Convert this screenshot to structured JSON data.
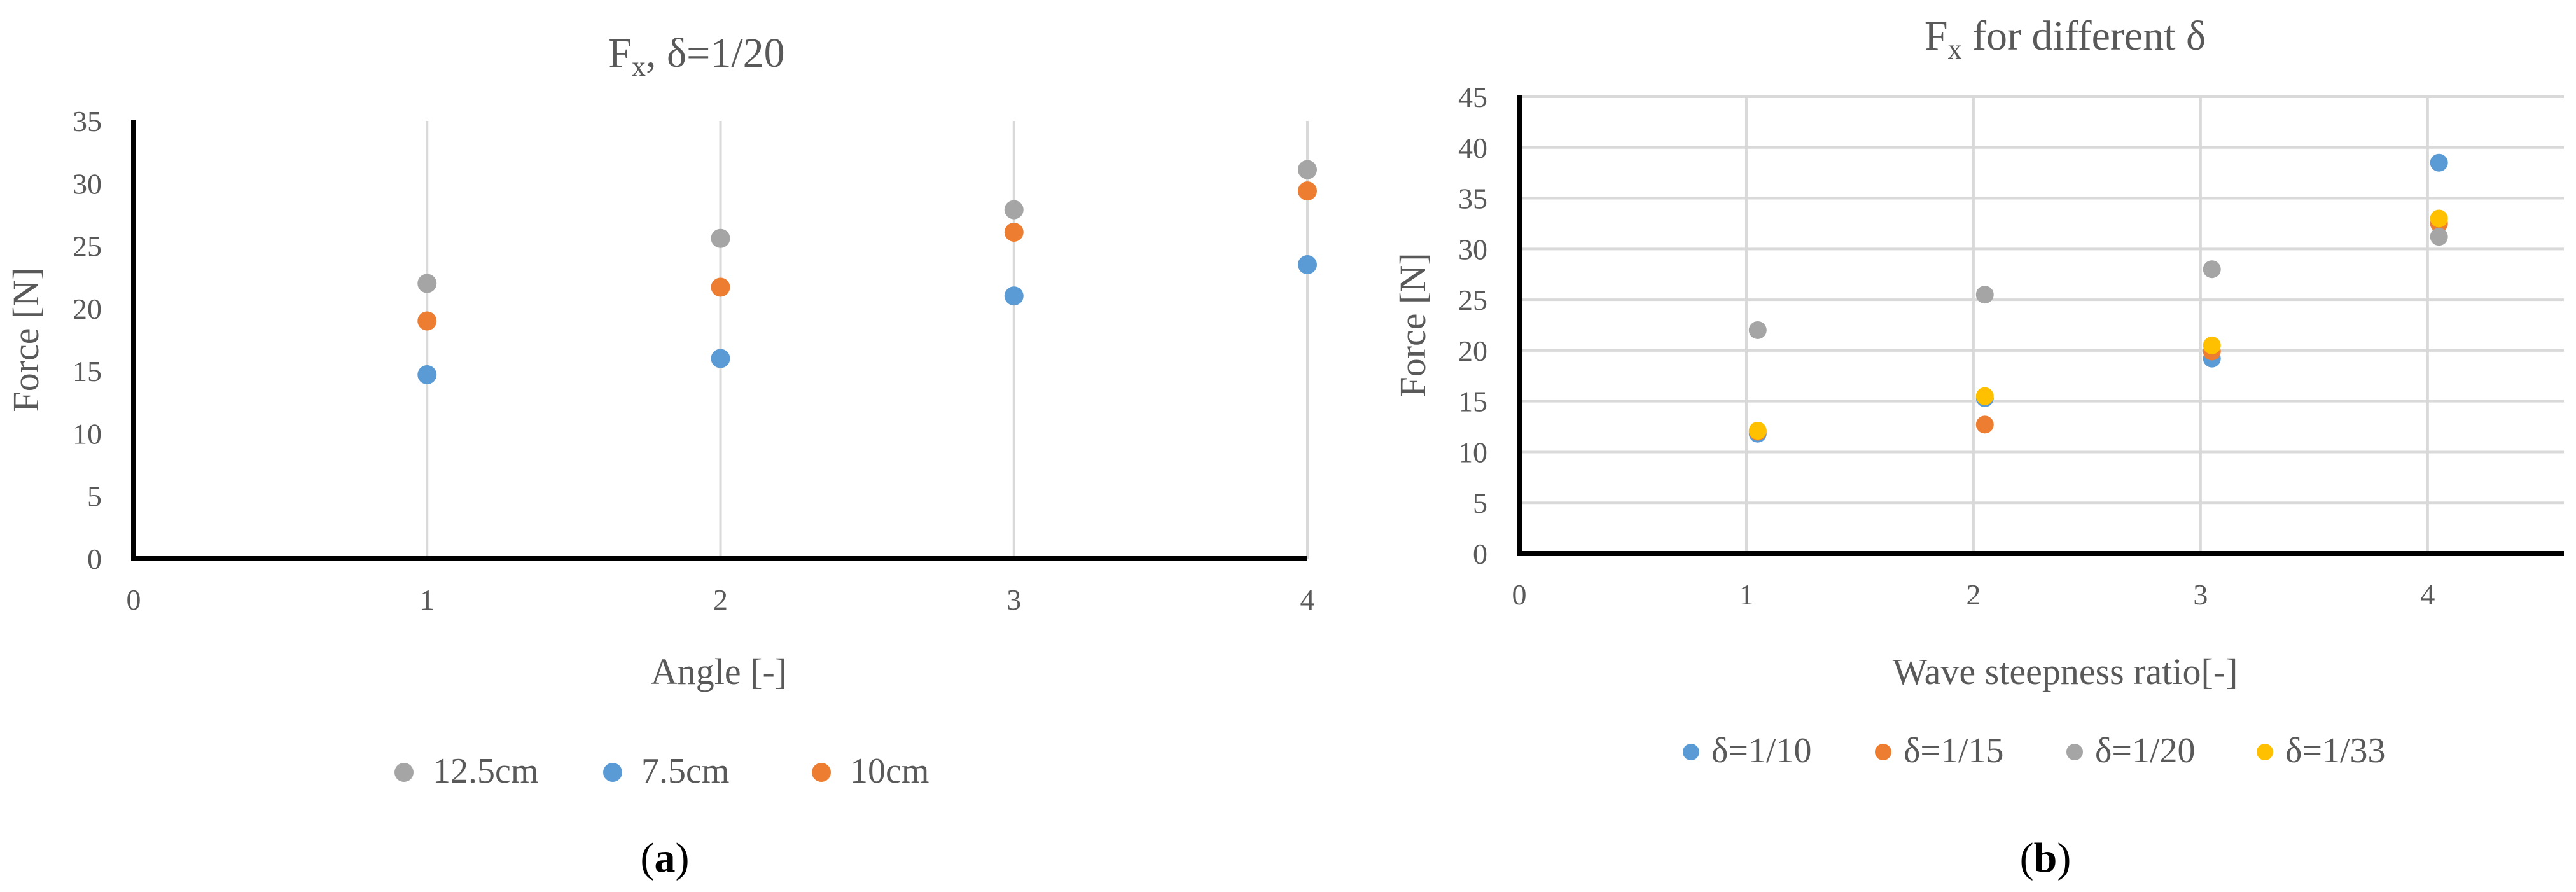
{
  "panels": [
    {
      "id": "a",
      "panel_label": "(a)",
      "title": "Fx, δ=1/20",
      "title_main": "F",
      "title_sub": "x",
      "title_rest": ", δ=1/20",
      "legend": [
        "12.5cm",
        "7.5cm",
        "10cm"
      ]
    },
    {
      "id": "b",
      "panel_label": "(b)",
      "title": "Fx for different δ",
      "title_main": "F",
      "title_sub": "x",
      "title_rest": " for different δ",
      "legend": [
        "δ=1/10",
        "δ=1/15",
        "δ=1/20",
        "δ=1/33"
      ]
    }
  ],
  "chart_data": [
    {
      "type": "scatter",
      "title": "Fx, δ=1/20",
      "xlabel": "Angle [-]",
      "ylabel": "Force [N]",
      "xlim": [
        0,
        4
      ],
      "ylim": [
        0,
        35
      ],
      "xticks": [
        0,
        1,
        2,
        3,
        4
      ],
      "yticks": [
        0,
        5,
        10,
        15,
        20,
        25,
        30,
        35
      ],
      "grid": "vertical",
      "legend_position": "bottom",
      "series": [
        {
          "name": "12.5cm",
          "color": "#a5a5a5",
          "x": [
            1,
            2,
            3,
            4
          ],
          "y": [
            22,
            25.6,
            27.9,
            31.1
          ]
        },
        {
          "name": "7.5cm",
          "color": "#5b9bd5",
          "x": [
            1,
            2,
            3,
            4
          ],
          "y": [
            14.7,
            16,
            21,
            23.5
          ]
        },
        {
          "name": "10cm",
          "color": "#ed7d31",
          "x": [
            1,
            2,
            3,
            4
          ],
          "y": [
            19,
            21.7,
            26.1,
            29.4
          ]
        }
      ]
    },
    {
      "type": "scatter",
      "title": "Fx for different δ",
      "xlabel": "Wave steepness ratio[-]",
      "ylabel": "Force [N]",
      "xlim": [
        0,
        4.6
      ],
      "ylim": [
        0,
        45
      ],
      "xticks": [
        0,
        1,
        2,
        3,
        4
      ],
      "yticks": [
        0,
        5,
        10,
        15,
        20,
        25,
        30,
        35,
        40,
        45
      ],
      "grid": "both",
      "legend_position": "bottom",
      "series": [
        {
          "name": "δ=1/10",
          "color": "#5b9bd5",
          "x": [
            1.05,
            2.05,
            3.05,
            4.05
          ],
          "y": [
            11.8,
            15.3,
            19.2,
            38.5
          ]
        },
        {
          "name": "δ=1/15",
          "color": "#ed7d31",
          "x": [
            1.05,
            2.05,
            3.05,
            4.05
          ],
          "y": [
            12,
            12.7,
            19.9,
            32.5
          ]
        },
        {
          "name": "δ=1/20",
          "color": "#a5a5a5",
          "x": [
            1.05,
            2.05,
            3.05,
            4.05
          ],
          "y": [
            22,
            25.5,
            28,
            31.2
          ]
        },
        {
          "name": "δ=1/33",
          "color": "#ffc000",
          "x": [
            1.05,
            2.05,
            3.05,
            4.05
          ],
          "y": [
            12.1,
            15.5,
            20.5,
            33
          ]
        }
      ]
    }
  ]
}
